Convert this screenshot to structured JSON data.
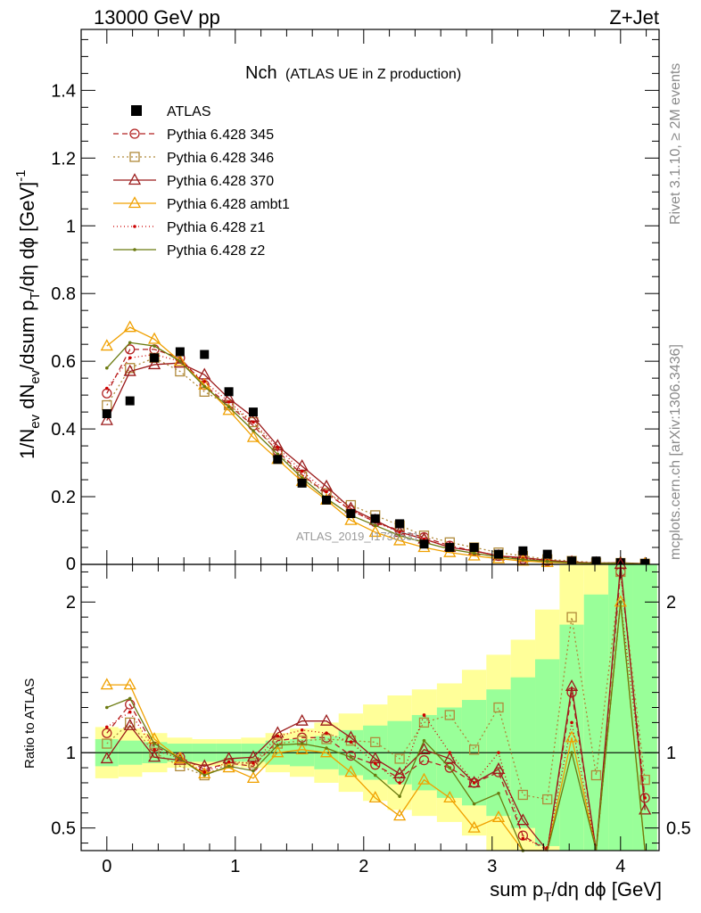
{
  "header": {
    "left": "13000 GeV pp",
    "right": "Z+Jet"
  },
  "plot_title": {
    "main": "Nch",
    "sub": "(ATLAS UE in Z production)"
  },
  "side_labels": {
    "rivet": "Rivet 3.1.10, ≥ 2M events",
    "mcplots": "mcplots.cern.ch [arXiv:1306.3436]"
  },
  "watermark": "ATLAS_2019_I1736531",
  "chart_data": {
    "type": "line",
    "x": [
      0.0,
      0.18,
      0.37,
      0.57,
      0.76,
      0.95,
      1.14,
      1.33,
      1.52,
      1.71,
      1.9,
      2.09,
      2.28,
      2.47,
      2.67,
      2.86,
      3.05,
      3.24,
      3.43,
      3.62,
      3.81,
      4.0,
      4.19
    ],
    "main": {
      "ylabel": "1/N_ev dN_ev/dsum p_T/dη dϕ [GeV]^-1",
      "xlim": [
        -0.2,
        4.3
      ],
      "ylim": [
        0,
        1.58
      ],
      "yticks": [
        {
          "value": 0.2,
          "label": "0.2"
        },
        {
          "value": 0.4,
          "label": "0.4"
        },
        {
          "value": 0.6,
          "label": "0.6"
        },
        {
          "value": 0.8,
          "label": "0.8"
        },
        {
          "value": 1.0,
          "label": "1"
        },
        {
          "value": 1.2,
          "label": "1.2"
        },
        {
          "value": 1.4,
          "label": "1.4"
        }
      ],
      "bottom_label": "0"
    },
    "ratio": {
      "ylabel": "Ratio to ATLAS",
      "ylim": [
        0.35,
        2.25
      ],
      "yticks": [
        {
          "value": 0.5,
          "label": "0.5"
        },
        {
          "value": 1.0,
          "label": "1"
        },
        {
          "value": 2.0,
          "label": "2"
        }
      ],
      "band_yellow_half": [
        0.17,
        0.16,
        0.13,
        0.1,
        0.09,
        0.09,
        0.1,
        0.13,
        0.16,
        0.2,
        0.26,
        0.32,
        0.38,
        0.42,
        0.46,
        0.55,
        0.65,
        0.75,
        0.95,
        1.3,
        1.6,
        1.8,
        2.0
      ],
      "band_green_half": [
        0.09,
        0.08,
        0.07,
        0.06,
        0.06,
        0.06,
        0.06,
        0.08,
        0.09,
        0.11,
        0.15,
        0.18,
        0.21,
        0.25,
        0.3,
        0.35,
        0.42,
        0.5,
        0.62,
        0.85,
        1.05,
        1.25,
        1.4
      ]
    },
    "xlabel": "sum p_T/dη dϕ [GeV]",
    "xticks": [
      {
        "value": 0,
        "label": "0"
      },
      {
        "value": 1,
        "label": "1"
      },
      {
        "value": 2,
        "label": "2"
      },
      {
        "value": 3,
        "label": "3"
      },
      {
        "value": 4,
        "label": "4"
      }
    ],
    "data": {
      "name": "ATLAS",
      "values": [
        0.445,
        0.483,
        0.61,
        0.628,
        0.62,
        0.51,
        0.45,
        0.31,
        0.24,
        0.19,
        0.15,
        0.135,
        0.12,
        0.06,
        0.05,
        0.05,
        0.03,
        0.04,
        0.03,
        0.01,
        0.01,
        0.005,
        0.003
      ]
    },
    "series": [
      {
        "name": "Pythia 6.428 345",
        "color": "#b22222",
        "dash": "6,4",
        "marker": "circle",
        "values": [
          0.505,
          0.635,
          0.635,
          0.61,
          0.53,
          0.47,
          0.41,
          0.335,
          0.265,
          0.21,
          0.16,
          0.125,
          0.1,
          0.08,
          0.055,
          0.04,
          0.025,
          0.015,
          0.01,
          0.005,
          0.003,
          0.004,
          0.002
        ]
      },
      {
        "name": "Pythia 6.428 346",
        "color": "#b08a3a",
        "dash": "2,3",
        "marker": "square",
        "values": [
          0.47,
          0.58,
          0.61,
          0.57,
          0.51,
          0.47,
          0.42,
          0.33,
          0.26,
          0.21,
          0.175,
          0.145,
          0.115,
          0.085,
          0.065,
          0.05,
          0.035,
          0.025,
          0.015,
          0.01,
          0.005,
          0.004,
          0.002
        ]
      },
      {
        "name": "Pythia 6.428 370",
        "color": "#9b1b1b",
        "dash": "",
        "marker": "triangle",
        "values": [
          0.425,
          0.57,
          0.59,
          0.595,
          0.56,
          0.49,
          0.435,
          0.35,
          0.29,
          0.23,
          0.165,
          0.13,
          0.095,
          0.075,
          0.05,
          0.04,
          0.025,
          0.02,
          0.012,
          0.007,
          0.004,
          0.005,
          0.002
        ]
      },
      {
        "name": "Pythia 6.428 ambt1",
        "color": "#f0a000",
        "dash": "",
        "marker": "triangle",
        "values": [
          0.645,
          0.7,
          0.665,
          0.6,
          0.53,
          0.455,
          0.375,
          0.31,
          0.245,
          0.19,
          0.13,
          0.095,
          0.07,
          0.05,
          0.035,
          0.025,
          0.017,
          0.01,
          0.006,
          0.004,
          0.002,
          0.004,
          0.001
        ]
      },
      {
        "name": "Pythia 6.428 z1",
        "color": "#cc0000",
        "dash": "1,3",
        "marker": "dot",
        "values": [
          0.52,
          0.61,
          0.62,
          0.6,
          0.54,
          0.48,
          0.42,
          0.345,
          0.275,
          0.215,
          0.16,
          0.125,
          0.095,
          0.075,
          0.05,
          0.04,
          0.025,
          0.017,
          0.011,
          0.006,
          0.003,
          0.004,
          0.002
        ]
      },
      {
        "name": "Pythia 6.428 z2",
        "color": "#6b7a10",
        "dash": "",
        "marker": "dot",
        "values": [
          0.58,
          0.655,
          0.645,
          0.6,
          0.525,
          0.465,
          0.395,
          0.325,
          0.255,
          0.195,
          0.145,
          0.115,
          0.085,
          0.065,
          0.045,
          0.033,
          0.022,
          0.014,
          0.009,
          0.005,
          0.003,
          0.004,
          0.001
        ]
      }
    ],
    "ratio_series": [
      [
        1.13,
        1.32,
        1.04,
        0.97,
        0.89,
        0.93,
        0.91,
        1.08,
        1.1,
        1.1,
        0.98,
        0.92,
        0.83,
        0.95,
        0.9,
        0.8,
        0.87,
        0.45,
        0.34,
        1.4,
        0.3,
        2.2,
        0.7
      ],
      [
        1.06,
        1.2,
        1.0,
        0.91,
        0.85,
        0.93,
        0.93,
        1.06,
        1.08,
        1.09,
        1.08,
        1.07,
        0.96,
        1.2,
        1.25,
        1.02,
        1.3,
        0.72,
        0.69,
        1.9,
        0.85,
        2.2,
        0.82
      ],
      [
        0.96,
        1.18,
        0.97,
        0.95,
        0.91,
        0.96,
        0.97,
        1.13,
        1.21,
        1.21,
        1.1,
        0.96,
        0.86,
        1.02,
        0.96,
        0.8,
        0.89,
        0.55,
        0.3,
        1.44,
        0.25,
        2.25,
        0.62
      ],
      [
        1.45,
        1.45,
        1.09,
        0.96,
        0.86,
        0.9,
        0.83,
        1.0,
        1.02,
        1.0,
        0.87,
        0.7,
        0.58,
        0.82,
        0.7,
        0.5,
        0.57,
        0.25,
        0.2,
        1.1,
        0.1,
        2.0,
        0.3
      ],
      [
        1.17,
        1.27,
        1.02,
        0.96,
        0.87,
        0.94,
        0.93,
        1.11,
        1.15,
        1.13,
        1.07,
        0.93,
        0.8,
        1.25,
        1.0,
        0.8,
        1.0,
        0.43,
        0.37,
        1.2,
        0.3,
        2.0,
        0.7
      ],
      [
        1.3,
        1.36,
        1.06,
        0.96,
        0.85,
        0.91,
        0.88,
        1.05,
        1.06,
        1.03,
        0.97,
        0.85,
        0.71,
        1.08,
        0.9,
        0.66,
        0.73,
        0.35,
        0.3,
        1.0,
        0.25,
        2.0,
        0.3
      ]
    ]
  }
}
